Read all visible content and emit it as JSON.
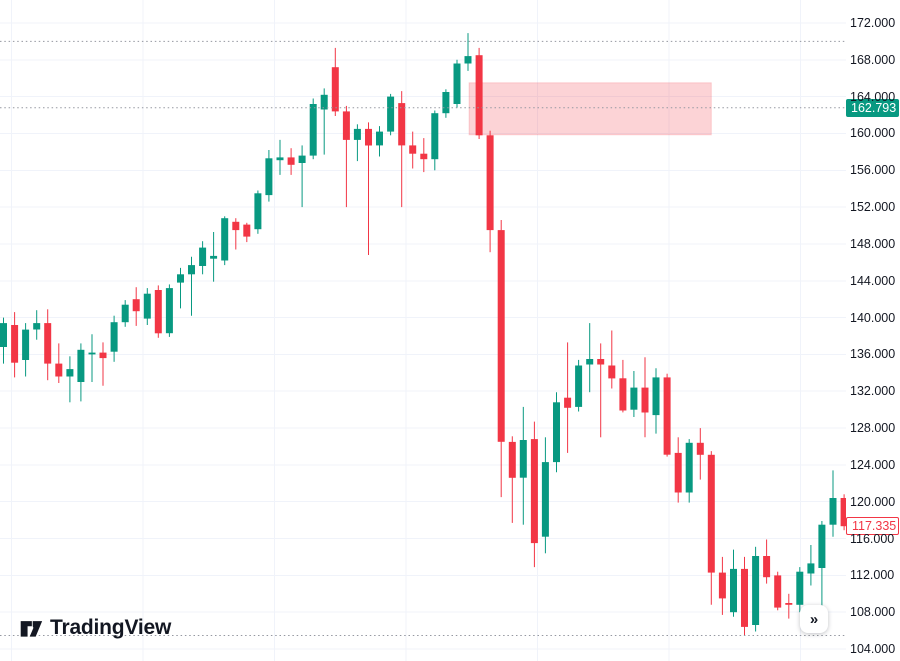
{
  "price_axis": {
    "labels": [
      "172.000",
      "168.000",
      "164.000",
      "160.000",
      "156.000",
      "152.000",
      "148.000",
      "144.000",
      "140.000",
      "136.000",
      "132.000",
      "128.000",
      "124.000",
      "120.000",
      "116.000",
      "112.000",
      "108.000",
      "104.000"
    ],
    "max_price": 172,
    "min_price": 104,
    "step": 4,
    "badges": [
      {
        "value": "162.793",
        "price": 162.793,
        "style": "filled-green"
      },
      {
        "value": "117.335",
        "price": 117.335,
        "style": "outline-red"
      }
    ]
  },
  "chart_data": {
    "type": "candlestick",
    "title": "",
    "y_range": [
      104,
      172
    ],
    "grid": true,
    "up_color": "#089981",
    "down_color": "#f23645",
    "dotted_levels": [
      {
        "name": "high-line",
        "price": 170.0
      },
      {
        "name": "last-value-line",
        "price": 162.793
      },
      {
        "name": "low-line",
        "price": 105.47
      }
    ],
    "supply_zone": {
      "price_top": 165.5,
      "price_bottom": 159.85,
      "start_index": 42.1,
      "end_index": 64.0,
      "fill": "rgba(242,54,69,0.22)",
      "stroke": "rgba(242,54,69,0.18)"
    },
    "candles": [
      [
        136.8,
        140.0,
        135.0,
        139.4
      ],
      [
        139.2,
        140.6,
        133.5,
        135.1
      ],
      [
        135.4,
        139.4,
        133.6,
        138.7
      ],
      [
        138.7,
        140.8,
        137.6,
        139.4
      ],
      [
        139.4,
        140.9,
        133.2,
        135.0
      ],
      [
        135.0,
        137.2,
        132.9,
        133.6
      ],
      [
        133.6,
        135.8,
        130.8,
        134.4
      ],
      [
        133.0,
        137.2,
        130.9,
        136.5
      ],
      [
        136.0,
        138.2,
        133.0,
        136.2
      ],
      [
        136.2,
        137.3,
        132.6,
        135.6
      ],
      [
        136.3,
        140.2,
        135.2,
        139.5
      ],
      [
        139.5,
        141.9,
        139.0,
        141.4
      ],
      [
        142.0,
        143.3,
        139.1,
        140.7
      ],
      [
        139.9,
        143.2,
        139.2,
        142.6
      ],
      [
        143.0,
        143.5,
        137.8,
        138.3
      ],
      [
        138.3,
        143.6,
        137.9,
        143.2
      ],
      [
        143.8,
        145.4,
        141.0,
        144.7
      ],
      [
        144.7,
        146.6,
        140.2,
        145.7
      ],
      [
        145.6,
        148.3,
        144.7,
        147.6
      ],
      [
        146.4,
        149.3,
        143.9,
        146.7
      ],
      [
        146.2,
        151.0,
        145.7,
        150.8
      ],
      [
        150.4,
        150.8,
        147.4,
        149.5
      ],
      [
        150.1,
        150.3,
        148.2,
        148.8
      ],
      [
        149.6,
        153.8,
        149.1,
        153.5
      ],
      [
        153.3,
        158.2,
        152.6,
        157.3
      ],
      [
        157.1,
        159.3,
        155.5,
        157.4
      ],
      [
        157.4,
        158.4,
        155.5,
        156.6
      ],
      [
        156.8,
        158.7,
        152.0,
        157.6
      ],
      [
        157.6,
        163.8,
        157.2,
        163.2
      ],
      [
        162.6,
        164.9,
        157.7,
        164.2
      ],
      [
        167.2,
        169.3,
        161.9,
        162.4
      ],
      [
        162.4,
        163.0,
        152.0,
        159.3
      ],
      [
        159.3,
        161.0,
        157.0,
        160.5
      ],
      [
        160.5,
        161.2,
        146.8,
        158.7
      ],
      [
        158.7,
        160.8,
        157.5,
        160.2
      ],
      [
        160.2,
        164.3,
        159.8,
        164.0
      ],
      [
        163.3,
        164.6,
        152.0,
        158.7
      ],
      [
        158.7,
        160.2,
        156.2,
        157.8
      ],
      [
        157.8,
        159.5,
        155.8,
        157.2
      ],
      [
        157.2,
        162.5,
        156.0,
        162.2
      ],
      [
        162.2,
        164.8,
        161.7,
        164.5
      ],
      [
        163.2,
        168.0,
        162.8,
        167.6
      ],
      [
        167.6,
        170.9,
        166.8,
        168.4
      ],
      [
        168.5,
        169.3,
        159.4,
        159.8
      ],
      [
        159.8,
        160.3,
        147.1,
        149.5
      ],
      [
        149.5,
        150.6,
        120.5,
        126.5
      ],
      [
        126.5,
        127.1,
        117.7,
        122.6
      ],
      [
        122.6,
        130.3,
        117.5,
        126.7
      ],
      [
        126.8,
        128.7,
        112.9,
        115.5
      ],
      [
        116.2,
        127.0,
        114.4,
        124.3
      ],
      [
        124.3,
        131.9,
        123.2,
        130.8
      ],
      [
        131.3,
        137.3,
        125.3,
        130.2
      ],
      [
        130.3,
        135.4,
        129.8,
        134.8
      ],
      [
        134.9,
        139.4,
        131.9,
        135.5
      ],
      [
        135.5,
        137.2,
        127.0,
        134.9
      ],
      [
        134.8,
        138.6,
        132.3,
        133.4
      ],
      [
        133.4,
        135.4,
        129.7,
        129.9
      ],
      [
        130.0,
        134.2,
        129.2,
        132.4
      ],
      [
        132.4,
        135.7,
        127.0,
        129.7
      ],
      [
        129.4,
        134.5,
        127.4,
        133.5
      ],
      [
        133.5,
        133.9,
        124.9,
        125.1
      ],
      [
        125.3,
        127.0,
        119.9,
        121.0
      ],
      [
        121.0,
        126.8,
        119.9,
        126.4
      ],
      [
        126.4,
        128.0,
        122.4,
        125.1
      ],
      [
        125.1,
        125.5,
        108.8,
        112.3
      ],
      [
        112.3,
        114.0,
        107.7,
        109.5
      ],
      [
        108.0,
        114.8,
        107.5,
        112.7
      ],
      [
        112.7,
        114.0,
        105.5,
        106.4
      ],
      [
        106.6,
        115.1,
        105.9,
        114.1
      ],
      [
        114.1,
        115.9,
        111.1,
        111.8
      ],
      [
        112.0,
        112.4,
        108.2,
        108.5
      ],
      [
        109.0,
        110.0,
        107.3,
        108.8
      ],
      [
        108.8,
        112.9,
        108.0,
        112.4
      ],
      [
        112.2,
        115.3,
        110.9,
        113.3
      ],
      [
        112.8,
        117.9,
        107.5,
        117.5
      ],
      [
        117.5,
        123.4,
        116.2,
        120.4
      ],
      [
        120.4,
        120.8,
        116.9,
        117.335
      ]
    ]
  },
  "logo": {
    "text": "TradingView"
  },
  "controls": {
    "go_to_realtime_label": "»"
  }
}
